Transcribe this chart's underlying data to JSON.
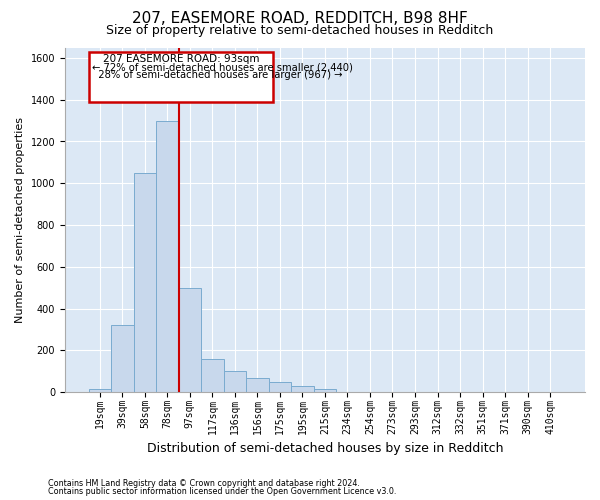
{
  "title1": "207, EASEMORE ROAD, REDDITCH, B98 8HF",
  "title2": "Size of property relative to semi-detached houses in Redditch",
  "xlabel": "Distribution of semi-detached houses by size in Redditch",
  "ylabel": "Number of semi-detached properties",
  "bar_values": [
    15,
    320,
    1050,
    1300,
    500,
    160,
    100,
    70,
    50,
    30,
    15,
    0,
    0,
    0,
    0,
    0,
    0,
    0,
    0,
    0,
    0
  ],
  "bin_labels": [
    "19sqm",
    "39sqm",
    "58sqm",
    "78sqm",
    "97sqm",
    "117sqm",
    "136sqm",
    "156sqm",
    "175sqm",
    "195sqm",
    "215sqm",
    "234sqm",
    "254sqm",
    "273sqm",
    "293sqm",
    "312sqm",
    "332sqm",
    "351sqm",
    "371sqm",
    "390sqm",
    "410sqm"
  ],
  "bar_color": "#c8d8ec",
  "bar_edge_color": "#7aabcf",
  "property_line_color": "#cc0000",
  "property_line_x": 3.5,
  "property_size": "93sqm",
  "property_address": "207 EASEMORE ROAD",
  "pct_smaller": 72,
  "n_smaller": 2440,
  "pct_larger": 28,
  "n_larger": 967,
  "annotation_box_edge": "#cc0000",
  "annotation_box_face": "#ffffff",
  "ylim": [
    0,
    1650
  ],
  "yticks": [
    0,
    200,
    400,
    600,
    800,
    1000,
    1200,
    1400,
    1600
  ],
  "fig_bg_color": "#ffffff",
  "plot_bg_color": "#dce8f5",
  "grid_color": "#ffffff",
  "footer1": "Contains HM Land Registry data © Crown copyright and database right 2024.",
  "footer2": "Contains public sector information licensed under the Open Government Licence v3.0.",
  "title1_fontsize": 11,
  "title2_fontsize": 9,
  "ylabel_fontsize": 8,
  "xlabel_fontsize": 9,
  "tick_fontsize": 7,
  "annot_fontsize": 7.5
}
